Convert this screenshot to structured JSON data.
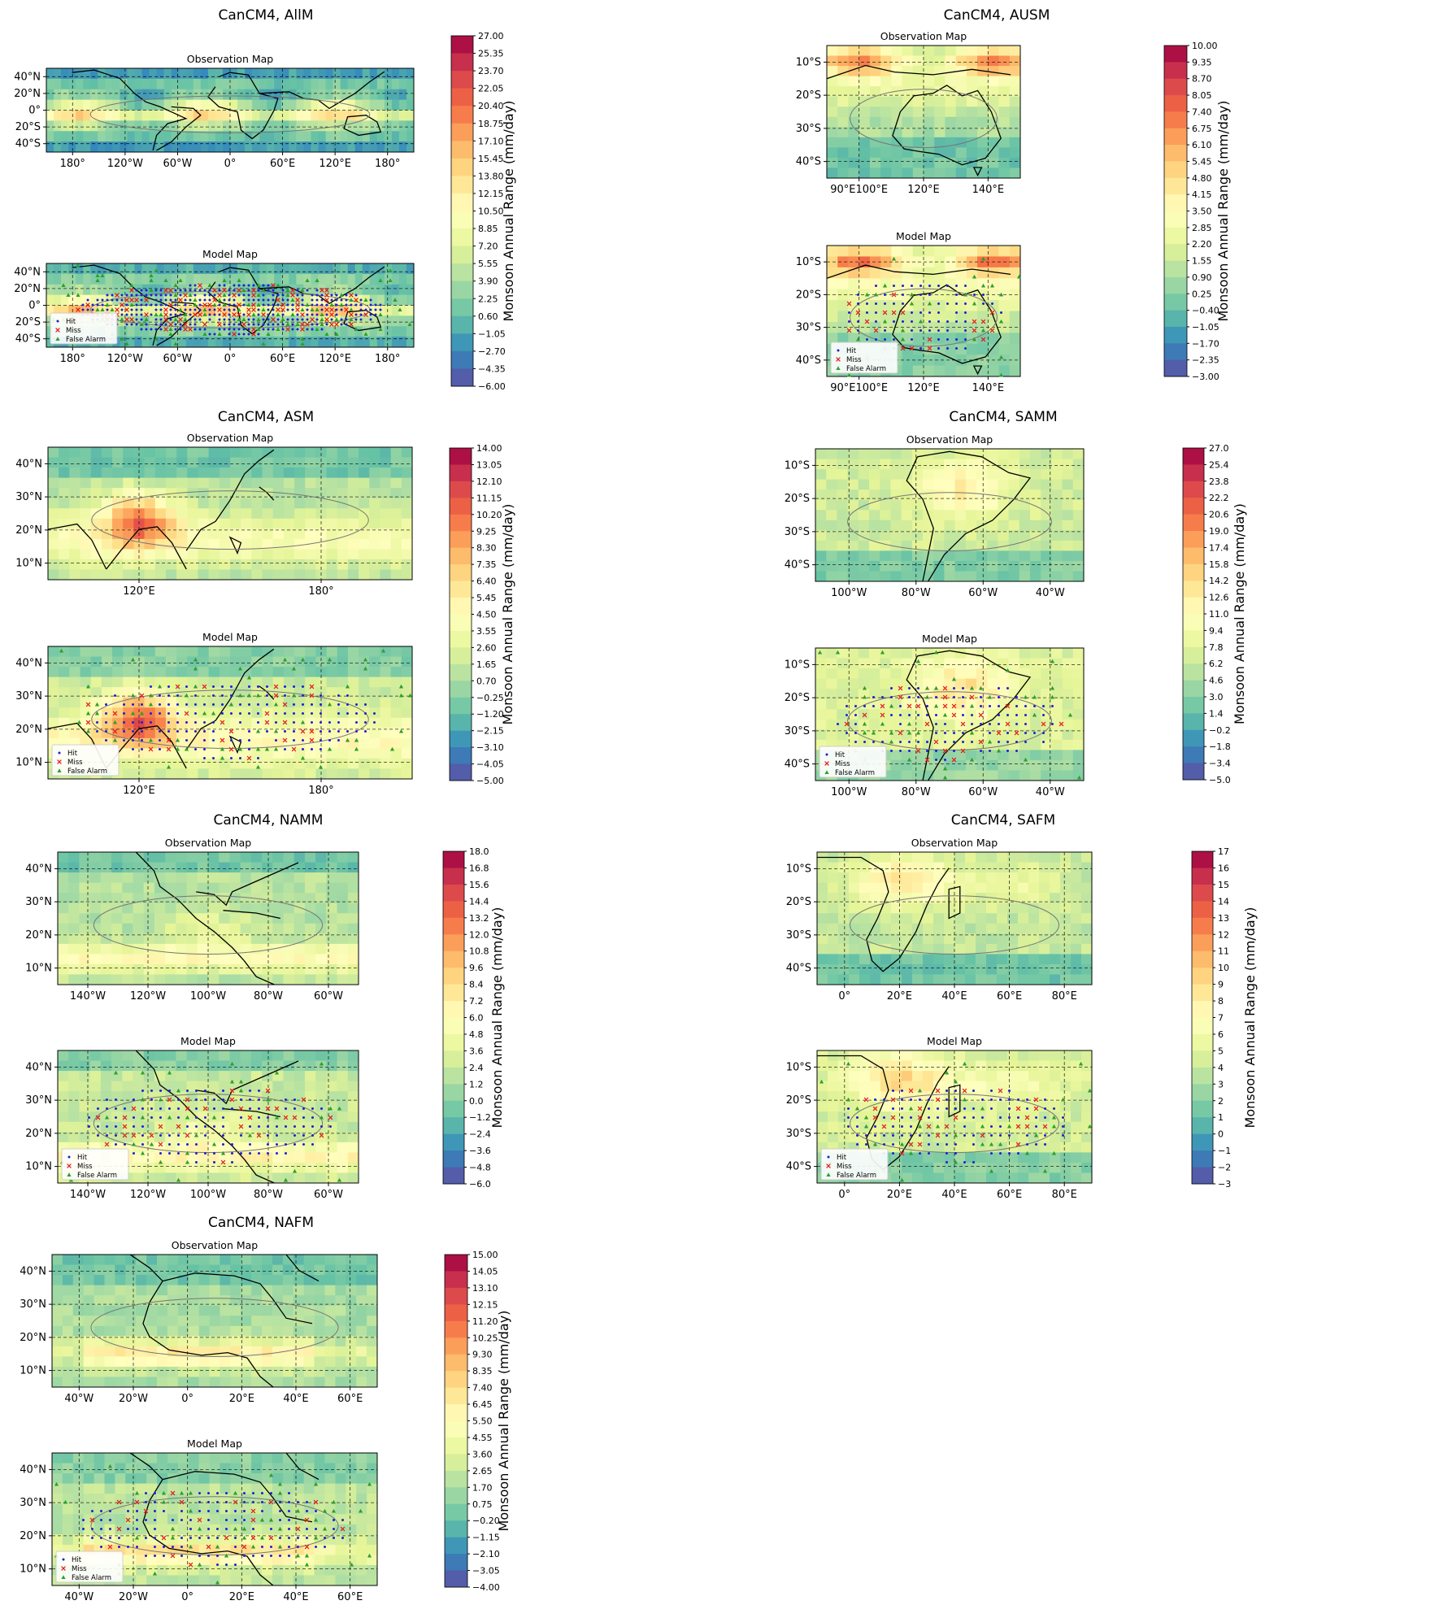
{
  "colorbar_label": "Monsoon Annual Range (mm/day)",
  "map_titles": {
    "observation": "Observation Map",
    "model": "Model Map"
  },
  "legend": {
    "hit": "Hit",
    "miss": "Miss",
    "false_alarm": "False Alarm"
  },
  "colors": {
    "hit": "#1f1fd6",
    "miss": "#e41a1c",
    "false_alarm": "#2ca02c",
    "scale": [
      "#5e4fa2",
      "#3288bd",
      "#66c2a5",
      "#abdda4",
      "#e6f598",
      "#ffffbf",
      "#fee08b",
      "#fdae61",
      "#f46d43",
      "#d53e4f",
      "#9e0142"
    ]
  },
  "chart_data": [
    {
      "type": "heatmap",
      "title": "CanCM4, AllM",
      "region": "AllM",
      "lon": [
        -180,
        180
      ],
      "lat": [
        -45,
        45
      ],
      "xticks": [
        "180°",
        "120°W",
        "60°W",
        "0°",
        "60°E",
        "120°E",
        "180°"
      ],
      "yticks": [
        "40°N",
        "20°N",
        "0°",
        "20°S",
        "40°S"
      ],
      "colorbar_range": [
        -6.0,
        27.0
      ],
      "colorbar_ticks": [
        "27.00",
        "25.35",
        "23.70",
        "22.05",
        "20.40",
        "18.75",
        "17.10",
        "15.45",
        "13.80",
        "12.15",
        "10.50",
        "8.85",
        "7.20",
        "5.55",
        "3.90",
        "2.25",
        "0.60",
        "−1.05",
        "−2.70",
        "−4.35",
        "−6.00"
      ]
    },
    {
      "type": "heatmap",
      "title": "CanCM4, AUSM",
      "region": "AUSM",
      "lon": [
        85,
        160
      ],
      "lat": [
        -45,
        0
      ],
      "xticks": [
        "90°E100°E",
        "120°E",
        "140°E"
      ],
      "yticks": [
        "10°S",
        "20°S",
        "30°S",
        "40°S"
      ],
      "colorbar_range": [
        -3.0,
        10.0
      ],
      "colorbar_ticks": [
        "10.00",
        "9.35",
        "8.70",
        "8.05",
        "7.40",
        "6.75",
        "6.10",
        "5.45",
        "4.80",
        "4.15",
        "3.50",
        "2.85",
        "2.20",
        "1.55",
        "0.90",
        "0.25",
        "−0.40",
        "−1.05",
        "−1.70",
        "−2.35",
        "−3.00"
      ]
    },
    {
      "type": "heatmap",
      "title": "CanCM4, ASM",
      "region": "ASM",
      "lon": [
        60,
        180
      ],
      "lat": [
        0,
        45
      ],
      "xticks": [
        "120°E",
        "180°"
      ],
      "yticks": [
        "40°N",
        "30°N",
        "20°N",
        "10°N"
      ],
      "colorbar_range": [
        -5.0,
        14.0
      ],
      "colorbar_ticks": [
        "14.00",
        "13.05",
        "12.10",
        "11.15",
        "10.20",
        "9.25",
        "8.30",
        "7.35",
        "6.40",
        "5.45",
        "4.50",
        "3.55",
        "2.60",
        "1.65",
        "0.70",
        "−0.25",
        "−1.20",
        "−2.15",
        "−3.10",
        "−4.05",
        "−5.00"
      ]
    },
    {
      "type": "heatmap",
      "title": "CanCM4, SAMM",
      "region": "SAMM",
      "lon": [
        -120,
        -30
      ],
      "lat": [
        -45,
        0
      ],
      "xticks": [
        "100°W",
        "80°W",
        "60°W",
        "40°W"
      ],
      "yticks": [
        "10°S",
        "20°S",
        "30°S",
        "40°S"
      ],
      "colorbar_range": [
        -5.0,
        27.0
      ],
      "colorbar_ticks": [
        "27.0",
        "25.4",
        "23.8",
        "22.2",
        "20.6",
        "19.0",
        "17.4",
        "15.8",
        "14.2",
        "12.6",
        "11.0",
        "9.4",
        "7.8",
        "6.2",
        "4.6",
        "3.0",
        "1.4",
        "−0.2",
        "−1.8",
        "−3.4",
        "−5.0"
      ]
    },
    {
      "type": "heatmap",
      "title": "CanCM4, NAMM",
      "region": "NAMM",
      "lon": [
        -150,
        -50
      ],
      "lat": [
        0,
        45
      ],
      "xticks": [
        "140°W",
        "120°W",
        "100°W",
        "80°W",
        "60°W"
      ],
      "yticks": [
        "40°N",
        "30°N",
        "20°N",
        "10°N"
      ],
      "colorbar_range": [
        -6.0,
        18.0
      ],
      "colorbar_ticks": [
        "18.0",
        "16.8",
        "15.6",
        "14.4",
        "13.2",
        "12.0",
        "10.8",
        "9.6",
        "8.4",
        "7.2",
        "6.0",
        "4.8",
        "3.6",
        "2.4",
        "1.2",
        "0.0",
        "−1.2",
        "−2.4",
        "−3.6",
        "−4.8",
        "−6.0"
      ]
    },
    {
      "type": "heatmap",
      "title": "CanCM4, SAFM",
      "region": "SAFM",
      "lon": [
        -1,
        92
      ],
      "lat": [
        -45,
        0
      ],
      "xticks": [
        "0°",
        "20°E",
        "40°E",
        "60°E",
        "80°E"
      ],
      "yticks": [
        "10°S",
        "20°S",
        "30°S",
        "40°S"
      ],
      "colorbar_range": [
        -3,
        17
      ],
      "colorbar_ticks": [
        "17",
        "16",
        "15",
        "14",
        "13",
        "12",
        "11",
        "10",
        "9",
        "8",
        "7",
        "6",
        "5",
        "4",
        "3",
        "2",
        "1",
        "0",
        "−1",
        "−2",
        "−3"
      ]
    },
    {
      "type": "heatmap",
      "title": "CanCM4, NAFM",
      "region": "NAFM",
      "lon": [
        -50,
        60
      ],
      "lat": [
        0,
        45
      ],
      "xticks": [
        "40°W",
        "20°W",
        "0°",
        "20°E",
        "40°E",
        "60°E"
      ],
      "yticks": [
        "40°N",
        "30°N",
        "20°N",
        "10°N"
      ],
      "colorbar_range": [
        -4.0,
        15.0
      ],
      "colorbar_ticks": [
        "15.00",
        "14.05",
        "13.10",
        "12.15",
        "11.20",
        "10.25",
        "9.30",
        "8.35",
        "7.40",
        "6.45",
        "5.50",
        "4.55",
        "3.60",
        "2.65",
        "1.70",
        "0.75",
        "−0.20",
        "−1.15",
        "−2.10",
        "−3.05",
        "−4.00"
      ]
    }
  ]
}
